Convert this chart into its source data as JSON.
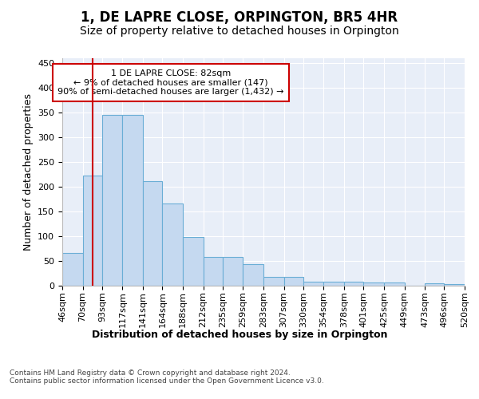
{
  "title": "1, DE LAPRE CLOSE, ORPINGTON, BR5 4HR",
  "subtitle": "Size of property relative to detached houses in Orpington",
  "xlabel": "Distribution of detached houses by size in Orpington",
  "ylabel": "Number of detached properties",
  "bin_labels": [
    "46sqm",
    "70sqm",
    "93sqm",
    "117sqm",
    "141sqm",
    "164sqm",
    "188sqm",
    "212sqm",
    "235sqm",
    "259sqm",
    "283sqm",
    "307sqm",
    "330sqm",
    "354sqm",
    "378sqm",
    "401sqm",
    "425sqm",
    "449sqm",
    "473sqm",
    "496sqm",
    "520sqm"
  ],
  "bar_values": [
    65,
    222,
    345,
    345,
    210,
    165,
    98,
    57,
    57,
    43,
    17,
    17,
    8,
    8,
    7,
    5,
    5,
    0,
    4,
    3
  ],
  "bar_fill_color": "#c5d9f0",
  "bar_edge_color": "#6aaed6",
  "property_size": 82,
  "vline_color": "#cc0000",
  "annotation_line1": "1 DE LAPRE CLOSE: 82sqm",
  "annotation_line2": "← 9% of detached houses are smaller (147)",
  "annotation_line3": "90% of semi-detached houses are larger (1,432) →",
  "annotation_box_bg": "#ffffff",
  "annotation_box_edge": "#cc0000",
  "ylim": [
    0,
    460
  ],
  "yticks": [
    0,
    50,
    100,
    150,
    200,
    250,
    300,
    350,
    400,
    450
  ],
  "plot_bg_color": "#e8eef8",
  "grid_color": "#ffffff",
  "title_fontsize": 12,
  "subtitle_fontsize": 10,
  "axis_label_fontsize": 9,
  "tick_fontsize": 8,
  "annotation_fontsize": 8,
  "footer_fontsize": 6.5,
  "footer_text": "Contains HM Land Registry data © Crown copyright and database right 2024.\nContains public sector information licensed under the Open Government Licence v3.0."
}
